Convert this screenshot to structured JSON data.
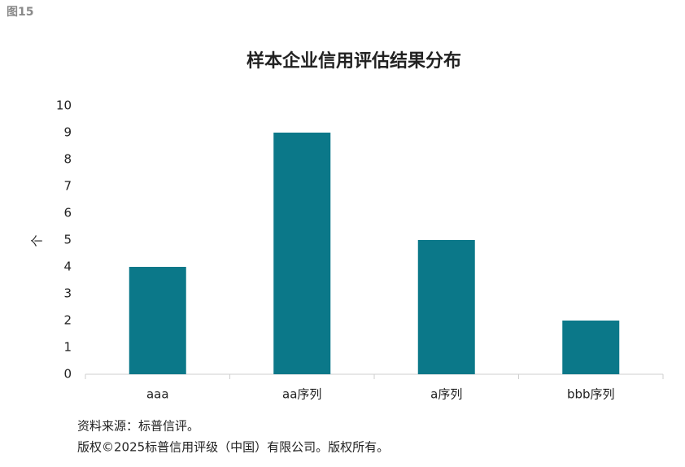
{
  "figure_label": "图15",
  "chart_data": {
    "type": "bar",
    "title": "样本企业信用评估结果分布",
    "ylabel": "个",
    "categories": [
      "aaa",
      "aa序列",
      "a序列",
      "bbb序列"
    ],
    "values": [
      4,
      9,
      5,
      2
    ],
    "color": "#0b7889",
    "ylim": [
      0,
      10
    ],
    "yticks": [
      0,
      1,
      2,
      3,
      4,
      5,
      6,
      7,
      8,
      9,
      10
    ],
    "grid": false
  },
  "notes": [
    "资料来源：标普信评。",
    "版权©2025标普信用评级（中国）有限公司。版权所有。"
  ]
}
